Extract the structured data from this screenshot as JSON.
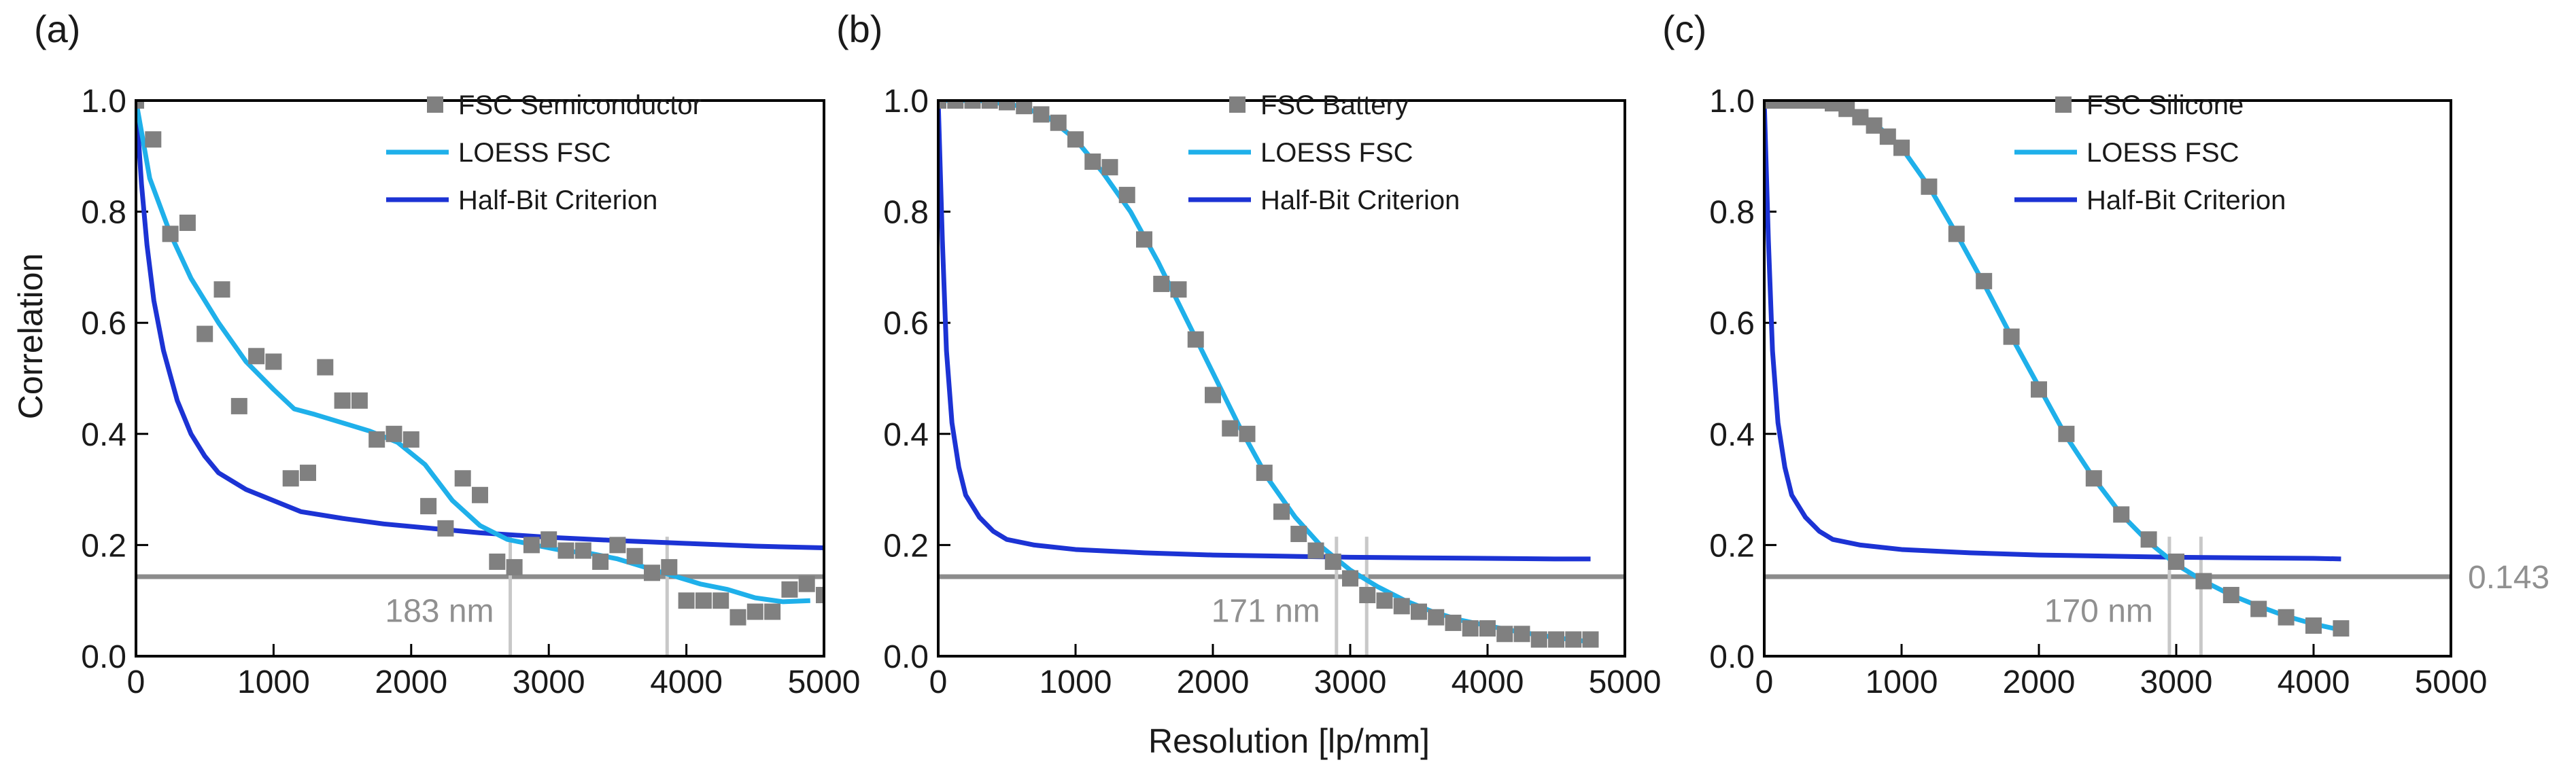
{
  "figure": {
    "ylabel": "Correlation",
    "xlabel": "Resolution [lp/mm]",
    "threshold_label": "0.143"
  },
  "colors": {
    "fsc_points": "#808080",
    "loess": "#1fb0ea",
    "half_bit": "#1c33d4",
    "threshold": "#8c8c8c",
    "marker_lines": "#c8c8c8"
  },
  "chart_data": [
    {
      "type": "scatter",
      "panel_label": "(a)",
      "xlim": [
        0,
        5000
      ],
      "ylim": [
        0,
        1.0
      ],
      "xticks": [
        "0",
        "1000",
        "2000",
        "3000",
        "4000",
        "5000"
      ],
      "yticks": [
        "0.0",
        "0.2",
        "0.4",
        "0.6",
        "0.8",
        "1.0"
      ],
      "legend": [
        "FSC Semiconductor",
        "LOESS FSC",
        "Half-Bit Criterion"
      ],
      "fsc_points": {
        "x": [
          0,
          125,
          250,
          375,
          500,
          625,
          750,
          875,
          1000,
          1125,
          1250,
          1375,
          1500,
          1625,
          1750,
          1875,
          2000,
          2125,
          2250,
          2375,
          2500,
          2625,
          2750,
          2875,
          3000,
          3125,
          3250,
          3375,
          3500,
          3625,
          3750,
          3875,
          4000,
          4125,
          4250,
          4375,
          4500,
          4625,
          4750,
          4875,
          5000
        ],
        "y": [
          1.0,
          0.93,
          0.76,
          0.78,
          0.58,
          0.66,
          0.45,
          0.54,
          0.53,
          0.32,
          0.33,
          0.52,
          0.46,
          0.46,
          0.39,
          0.4,
          0.39,
          0.27,
          0.23,
          0.32,
          0.29,
          0.17,
          0.16,
          0.2,
          0.21,
          0.19,
          0.19,
          0.17,
          0.2,
          0.18,
          0.15,
          0.16,
          0.1,
          0.1,
          0.1,
          0.07,
          0.08,
          0.08,
          0.12,
          0.13,
          0.11
        ]
      },
      "loess_fsc": {
        "x": [
          0,
          100,
          250,
          400,
          600,
          800,
          1000,
          1150,
          1300,
          1500,
          1700,
          1900,
          2100,
          2300,
          2500,
          2700,
          2900,
          3100,
          3300,
          3500,
          3700,
          3900,
          4100,
          4300,
          4500,
          4700,
          4900
        ],
        "y": [
          1.0,
          0.86,
          0.76,
          0.68,
          0.6,
          0.53,
          0.48,
          0.445,
          0.435,
          0.42,
          0.405,
          0.385,
          0.345,
          0.28,
          0.235,
          0.21,
          0.2,
          0.19,
          0.185,
          0.175,
          0.16,
          0.145,
          0.13,
          0.12,
          0.105,
          0.098,
          0.1
        ]
      },
      "half_bit": {
        "x": [
          0,
          40,
          80,
          130,
          200,
          300,
          400,
          500,
          600,
          700,
          800,
          1000,
          1200,
          1500,
          1800,
          2100,
          2500,
          3000,
          3500,
          4000,
          4500,
          5000
        ],
        "y": [
          1.0,
          0.85,
          0.74,
          0.64,
          0.55,
          0.46,
          0.4,
          0.36,
          0.33,
          0.315,
          0.3,
          0.28,
          0.26,
          0.248,
          0.238,
          0.231,
          0.222,
          0.214,
          0.208,
          0.203,
          0.198,
          0.195
        ]
      },
      "threshold": 0.143,
      "marker_x": [
        2720,
        3860
      ],
      "annotation": "183 nm"
    },
    {
      "type": "scatter",
      "panel_label": "(b)",
      "xlim": [
        0,
        5000
      ],
      "ylim": [
        0,
        1.0
      ],
      "xticks": [
        "0",
        "1000",
        "2000",
        "3000",
        "4000",
        "5000"
      ],
      "yticks": [
        "0.0",
        "0.2",
        "0.4",
        "0.6",
        "0.8",
        "1.0"
      ],
      "legend": [
        "FSC Battery",
        "LOESS FSC",
        "Half-Bit Criterion"
      ],
      "fsc_points": {
        "x": [
          0,
          125,
          250,
          375,
          500,
          625,
          750,
          875,
          1000,
          1125,
          1250,
          1375,
          1500,
          1625,
          1750,
          1875,
          2000,
          2125,
          2250,
          2375,
          2500,
          2625,
          2750,
          2875,
          3000,
          3125,
          3250,
          3375,
          3500,
          3625,
          3750,
          3875,
          4000,
          4125,
          4250,
          4375,
          4500,
          4625,
          4750
        ],
        "y": [
          1.0,
          1.0,
          1.0,
          1.0,
          0.997,
          0.99,
          0.975,
          0.96,
          0.93,
          0.89,
          0.88,
          0.83,
          0.75,
          0.67,
          0.66,
          0.57,
          0.47,
          0.41,
          0.4,
          0.33,
          0.26,
          0.22,
          0.19,
          0.17,
          0.14,
          0.11,
          0.1,
          0.09,
          0.08,
          0.07,
          0.06,
          0.05,
          0.05,
          0.04,
          0.04,
          0.03,
          0.03,
          0.03,
          0.03
        ]
      },
      "loess_fsc": {
        "x": [
          0,
          300,
          600,
          800,
          1000,
          1200,
          1400,
          1600,
          1800,
          2000,
          2200,
          2400,
          2600,
          2800,
          3000,
          3200,
          3400,
          3600,
          3800,
          4000,
          4200,
          4400,
          4600,
          4750
        ],
        "y": [
          1.0,
          1.0,
          0.99,
          0.97,
          0.93,
          0.87,
          0.8,
          0.71,
          0.61,
          0.51,
          0.41,
          0.32,
          0.25,
          0.195,
          0.155,
          0.125,
          0.1,
          0.08,
          0.065,
          0.055,
          0.045,
          0.037,
          0.03,
          0.026
        ]
      },
      "half_bit": {
        "x": [
          0,
          30,
          60,
          100,
          150,
          200,
          300,
          400,
          500,
          700,
          1000,
          1500,
          2000,
          2500,
          3000,
          3500,
          4000,
          4500,
          4750
        ],
        "y": [
          1.0,
          0.75,
          0.55,
          0.42,
          0.34,
          0.29,
          0.25,
          0.225,
          0.21,
          0.2,
          0.192,
          0.186,
          0.182,
          0.18,
          0.178,
          0.177,
          0.176,
          0.175,
          0.175
        ]
      },
      "threshold": 0.143,
      "marker_x": [
        2900,
        3120
      ],
      "annotation": "171 nm"
    },
    {
      "type": "scatter",
      "panel_label": "(c)",
      "xlim": [
        0,
        5000
      ],
      "ylim": [
        0,
        1.0
      ],
      "xticks": [
        "0",
        "1000",
        "2000",
        "3000",
        "4000",
        "5000"
      ],
      "yticks": [
        "0.0",
        "0.2",
        "0.4",
        "0.6",
        "0.8",
        "1.0"
      ],
      "legend": [
        "FSC Silicone",
        "LOESS FSC",
        "Half-Bit Criterion"
      ],
      "fsc_points": {
        "x": [
          0,
          100,
          200,
          300,
          400,
          500,
          600,
          700,
          800,
          900,
          1000,
          1200,
          1400,
          1600,
          1800,
          2000,
          2200,
          2400,
          2600,
          2800,
          3000,
          3200,
          3400,
          3600,
          3800,
          4000,
          4200
        ],
        "y": [
          1.0,
          1.0,
          1.0,
          1.0,
          1.0,
          0.995,
          0.985,
          0.97,
          0.955,
          0.935,
          0.915,
          0.845,
          0.76,
          0.675,
          0.575,
          0.48,
          0.4,
          0.32,
          0.255,
          0.21,
          0.17,
          0.135,
          0.11,
          0.085,
          0.07,
          0.055,
          0.05
        ]
      },
      "loess_fsc": {
        "x": [
          0,
          300,
          600,
          800,
          1000,
          1200,
          1400,
          1600,
          1800,
          2000,
          2200,
          2400,
          2600,
          2800,
          3000,
          3200,
          3400,
          3600,
          3800,
          4000,
          4200
        ],
        "y": [
          1.0,
          1.0,
          0.985,
          0.96,
          0.915,
          0.845,
          0.76,
          0.67,
          0.575,
          0.485,
          0.395,
          0.32,
          0.255,
          0.205,
          0.165,
          0.135,
          0.11,
          0.09,
          0.072,
          0.058,
          0.047
        ]
      },
      "half_bit": {
        "x": [
          0,
          30,
          60,
          100,
          150,
          200,
          300,
          400,
          500,
          700,
          1000,
          1500,
          2000,
          2500,
          3000,
          3500,
          4000,
          4200
        ],
        "y": [
          1.0,
          0.75,
          0.55,
          0.42,
          0.34,
          0.29,
          0.25,
          0.225,
          0.21,
          0.2,
          0.192,
          0.186,
          0.182,
          0.18,
          0.178,
          0.177,
          0.176,
          0.175
        ]
      },
      "threshold": 0.143,
      "marker_x": [
        2950,
        3180
      ],
      "annotation": "170 nm"
    }
  ]
}
